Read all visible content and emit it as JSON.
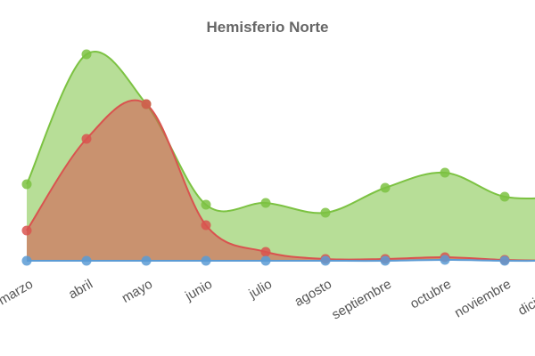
{
  "chart_data": {
    "type": "area",
    "title": "Hemisferio Norte",
    "categories": [
      "marzo",
      "abril",
      "mayo",
      "junio",
      "julio",
      "agosto",
      "septiembre",
      "octubre",
      "noviembre",
      "diciembre"
    ],
    "series": [
      {
        "color": "#7cc242",
        "values": [
          86,
          232,
          176,
          63,
          65,
          54,
          82,
          99,
          72,
          72
        ]
      },
      {
        "color": "#d9534f",
        "values": [
          34,
          137,
          176,
          40,
          10,
          2,
          2,
          4,
          1,
          0
        ]
      },
      {
        "color": "#5b9bd5",
        "values": [
          0,
          0,
          0,
          0,
          0,
          0,
          0,
          1,
          0,
          0
        ]
      }
    ],
    "ylim": [
      0,
      260
    ]
  }
}
